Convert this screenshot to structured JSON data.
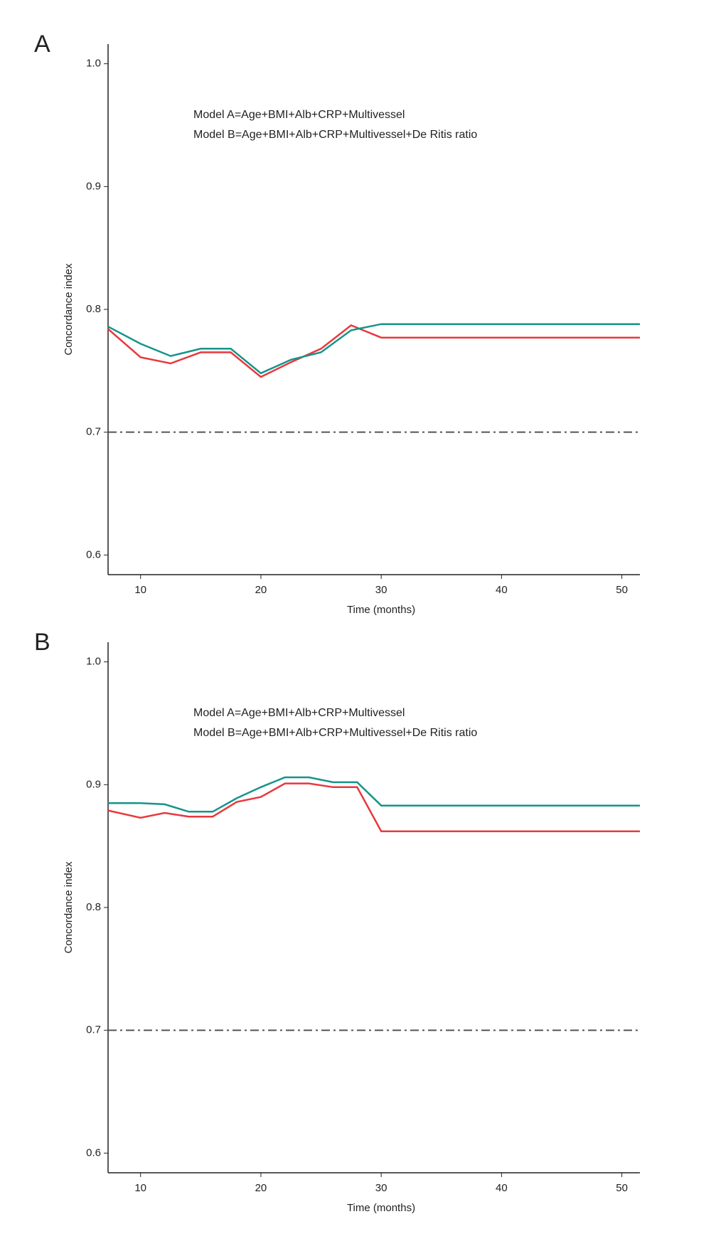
{
  "chart_data": [
    {
      "type": "line",
      "panel": "A",
      "ylabel": "Concordance index",
      "xlabel": "Time (months)",
      "x": [
        7.3,
        10,
        12.5,
        15,
        17.5,
        20,
        22.5,
        25,
        27.5,
        30,
        51.5
      ],
      "series": [
        {
          "name": "Model A=Age+BMI+Alb+CRP+Multivessel",
          "color": "#e8383d",
          "values": [
            0.784,
            0.761,
            0.756,
            0.765,
            0.765,
            0.745,
            0.757,
            0.768,
            0.787,
            0.777,
            0.777
          ]
        },
        {
          "name": "Model B=Age+BMI+Alb+CRP+Multivessel+De Ritis ratio",
          "color": "#16948a",
          "values": [
            0.786,
            0.772,
            0.762,
            0.768,
            0.768,
            0.748,
            0.759,
            0.765,
            0.783,
            0.788,
            0.788
          ]
        }
      ],
      "reference_line": 0.7,
      "xlim": [
        7.3,
        51.5
      ],
      "ylim": [
        0.584,
        1.016
      ],
      "xticks": [
        10,
        20,
        30,
        40,
        50
      ],
      "yticks": [
        0.6,
        0.7,
        0.8,
        0.9,
        {
          "value": 1,
          "label": "1.0"
        }
      ]
    },
    {
      "type": "line",
      "panel": "B",
      "ylabel": "Concordance index",
      "xlabel": "Time (months)",
      "x": [
        7.3,
        10,
        12,
        14,
        16,
        18,
        20,
        22,
        24,
        26,
        28,
        30,
        51.5
      ],
      "series": [
        {
          "name": "Model A=Age+BMI+Alb+CRP+Multivessel",
          "color": "#e8383d",
          "values": [
            0.879,
            0.873,
            0.877,
            0.874,
            0.874,
            0.886,
            0.89,
            0.901,
            0.901,
            0.898,
            0.898,
            0.862,
            0.862
          ]
        },
        {
          "name": "Model B=Age+BMI+Alb+CRP+Multivessel+De Ritis ratio",
          "color": "#16948a",
          "values": [
            0.885,
            0.885,
            0.884,
            0.878,
            0.878,
            0.889,
            0.898,
            0.906,
            0.906,
            0.902,
            0.902,
            0.883,
            0.883
          ]
        }
      ],
      "reference_line": 0.7,
      "xlim": [
        7.3,
        51.5
      ],
      "ylim": [
        0.584,
        1.016
      ],
      "xticks": [
        10,
        20,
        30,
        40,
        50
      ],
      "yticks": [
        0.6,
        0.7,
        0.8,
        0.9,
        {
          "value": 1,
          "label": "1.0"
        }
      ]
    }
  ]
}
